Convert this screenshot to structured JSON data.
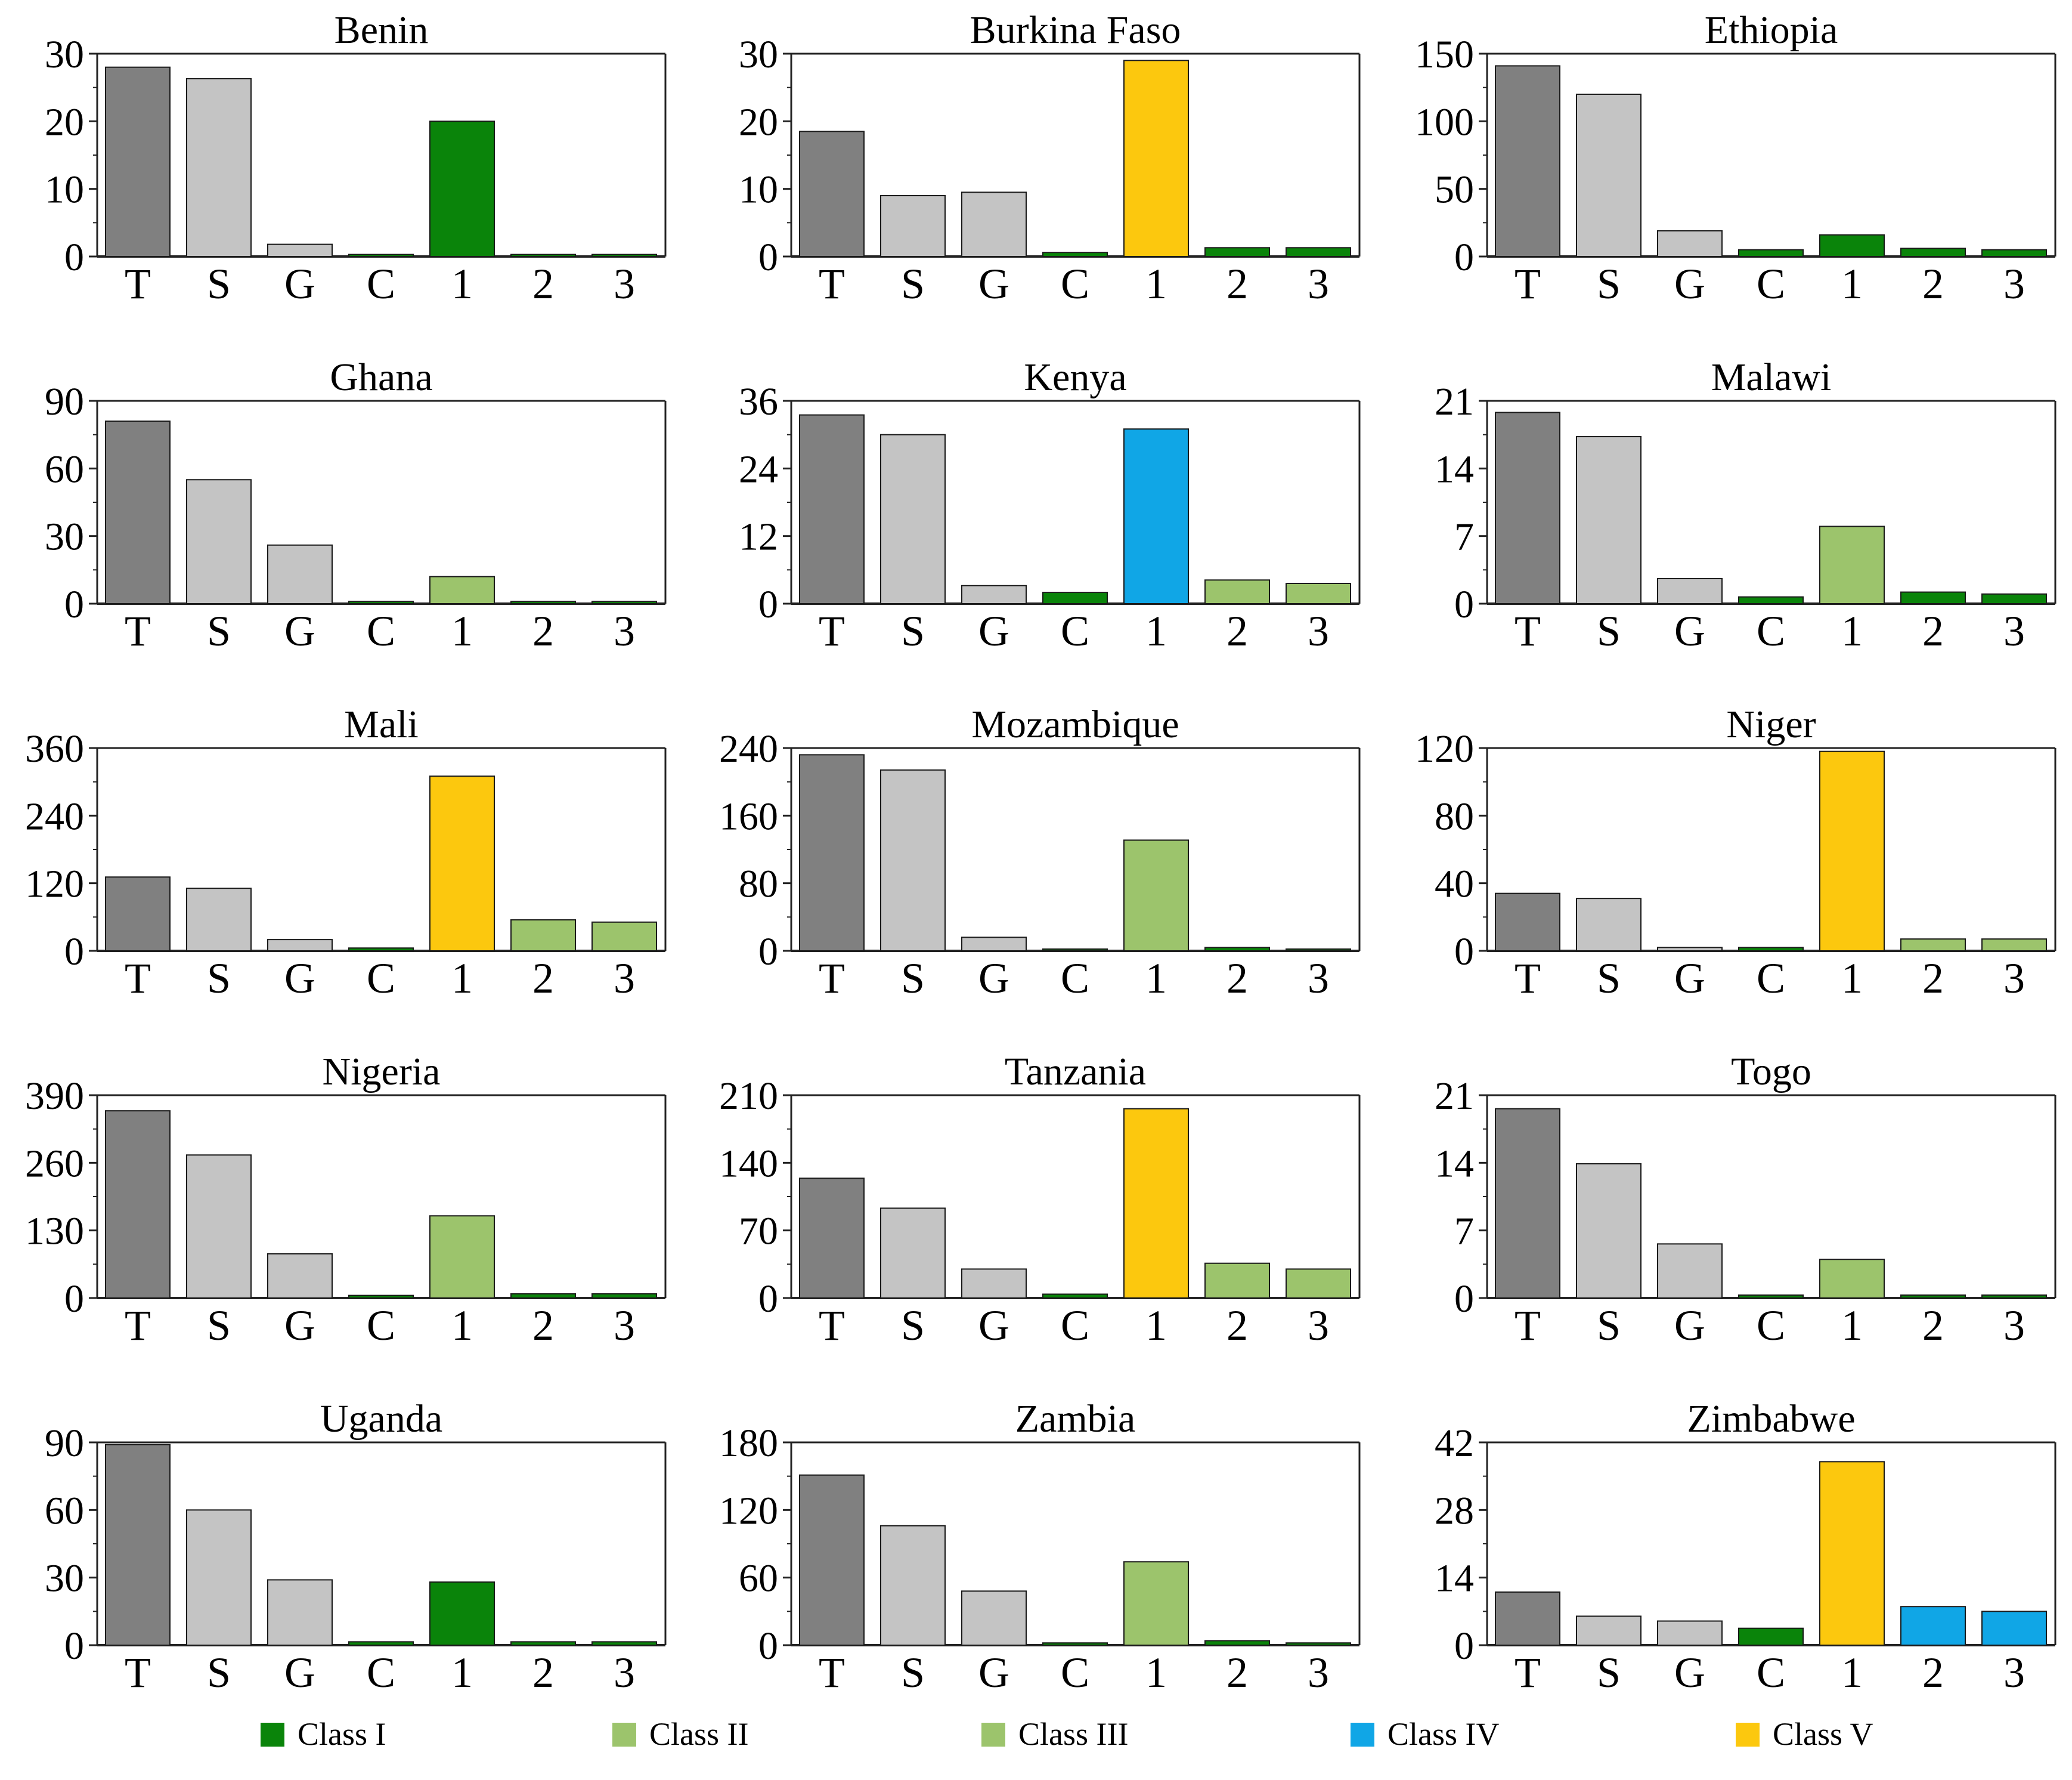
{
  "colors": {
    "total": "#808080",
    "subgroup": "#c4c4c4",
    "class_I": "#0a840a",
    "class_II": "#9cc46c",
    "class_III": "#9cc46c",
    "class_IV": "#10a6e6",
    "class_V": "#fcc80e"
  },
  "legend": [
    {
      "label": "Class I",
      "color_key": "class_I"
    },
    {
      "label": "Class II",
      "color_key": "class_II"
    },
    {
      "label": "Class III",
      "color_key": "class_III"
    },
    {
      "label": "Class IV",
      "color_key": "class_IV"
    },
    {
      "label": "Class V",
      "color_key": "class_V"
    }
  ],
  "chart_data": [
    {
      "type": "bar",
      "title": "Benin",
      "categories": [
        "T",
        "S",
        "G",
        "C",
        "1",
        "2",
        "3"
      ],
      "values": [
        28,
        26.3,
        1.8,
        0.3,
        20,
        0.3,
        0.3
      ],
      "colors": [
        "total",
        "subgroup",
        "subgroup",
        "class_I",
        "class_I",
        "class_I",
        "class_I"
      ],
      "yticks": [
        0,
        10,
        20,
        30
      ],
      "ylim": [
        0,
        30
      ]
    },
    {
      "type": "bar",
      "title": "Burkina Faso",
      "categories": [
        "T",
        "S",
        "G",
        "C",
        "1",
        "2",
        "3"
      ],
      "values": [
        18.5,
        9,
        9.5,
        0.6,
        29,
        1.3,
        1.3
      ],
      "colors": [
        "total",
        "subgroup",
        "subgroup",
        "class_I",
        "class_V",
        "class_I",
        "class_I"
      ],
      "yticks": [
        0,
        10,
        20,
        30
      ],
      "ylim": [
        0,
        30
      ]
    },
    {
      "type": "bar",
      "title": "Ethiopia",
      "categories": [
        "T",
        "S",
        "G",
        "C",
        "1",
        "2",
        "3"
      ],
      "values": [
        141,
        120,
        19,
        5,
        16,
        6,
        5
      ],
      "colors": [
        "total",
        "subgroup",
        "subgroup",
        "class_I",
        "class_I",
        "class_I",
        "class_I"
      ],
      "yticks": [
        0,
        50,
        100,
        150
      ],
      "ylim": [
        0,
        150
      ]
    },
    {
      "type": "bar",
      "title": "Ghana",
      "categories": [
        "T",
        "S",
        "G",
        "C",
        "1",
        "2",
        "3"
      ],
      "values": [
        81,
        55,
        26,
        1,
        12,
        1,
        1
      ],
      "colors": [
        "total",
        "subgroup",
        "subgroup",
        "class_I",
        "class_II",
        "class_I",
        "class_I"
      ],
      "yticks": [
        0,
        30,
        60,
        90
      ],
      "ylim": [
        0,
        90
      ]
    },
    {
      "type": "bar",
      "title": "Kenya",
      "categories": [
        "T",
        "S",
        "G",
        "C",
        "1",
        "2",
        "3"
      ],
      "values": [
        33.5,
        30,
        3.2,
        2,
        31,
        4.2,
        3.6
      ],
      "colors": [
        "total",
        "subgroup",
        "subgroup",
        "class_I",
        "class_IV",
        "class_II",
        "class_II"
      ],
      "yticks": [
        0,
        12,
        24,
        36
      ],
      "ylim": [
        0,
        36
      ]
    },
    {
      "type": "bar",
      "title": "Malawi",
      "categories": [
        "T",
        "S",
        "G",
        "C",
        "1",
        "2",
        "3"
      ],
      "values": [
        19.8,
        17.3,
        2.6,
        0.7,
        8,
        1.2,
        1
      ],
      "colors": [
        "total",
        "subgroup",
        "subgroup",
        "class_I",
        "class_II",
        "class_I",
        "class_I"
      ],
      "yticks": [
        0,
        7,
        14,
        21
      ],
      "ylim": [
        0,
        21
      ]
    },
    {
      "type": "bar",
      "title": "Mali",
      "categories": [
        "T",
        "S",
        "G",
        "C",
        "1",
        "2",
        "3"
      ],
      "values": [
        131,
        111,
        20,
        5,
        310,
        55,
        51
      ],
      "colors": [
        "total",
        "subgroup",
        "subgroup",
        "class_I",
        "class_V",
        "class_II",
        "class_II"
      ],
      "yticks": [
        0,
        120,
        240,
        360
      ],
      "ylim": [
        0,
        360
      ]
    },
    {
      "type": "bar",
      "title": "Mozambique",
      "categories": [
        "T",
        "S",
        "G",
        "C",
        "1",
        "2",
        "3"
      ],
      "values": [
        232,
        214,
        16,
        2,
        131,
        4,
        2
      ],
      "colors": [
        "total",
        "subgroup",
        "subgroup",
        "class_I",
        "class_II",
        "class_I",
        "class_I"
      ],
      "yticks": [
        0,
        80,
        160,
        240
      ],
      "ylim": [
        0,
        240
      ]
    },
    {
      "type": "bar",
      "title": "Niger",
      "categories": [
        "T",
        "S",
        "G",
        "C",
        "1",
        "2",
        "3"
      ],
      "values": [
        34,
        31,
        2,
        2,
        118,
        7,
        7
      ],
      "colors": [
        "total",
        "subgroup",
        "subgroup",
        "class_I",
        "class_V",
        "class_II",
        "class_II"
      ],
      "yticks": [
        0,
        40,
        80,
        120
      ],
      "ylim": [
        0,
        120
      ]
    },
    {
      "type": "bar",
      "title": "Nigeria",
      "categories": [
        "T",
        "S",
        "G",
        "C",
        "1",
        "2",
        "3"
      ],
      "values": [
        360,
        275,
        85,
        5,
        158,
        8,
        8
      ],
      "colors": [
        "total",
        "subgroup",
        "subgroup",
        "class_I",
        "class_II",
        "class_I",
        "class_I"
      ],
      "yticks": [
        0,
        130,
        260,
        390
      ],
      "ylim": [
        0,
        390
      ]
    },
    {
      "type": "bar",
      "title": "Tanzania",
      "categories": [
        "T",
        "S",
        "G",
        "C",
        "1",
        "2",
        "3"
      ],
      "values": [
        124,
        93,
        30,
        4,
        196,
        36,
        30
      ],
      "colors": [
        "total",
        "subgroup",
        "subgroup",
        "class_I",
        "class_V",
        "class_II",
        "class_II"
      ],
      "yticks": [
        0,
        70,
        140,
        210
      ],
      "ylim": [
        0,
        210
      ]
    },
    {
      "type": "bar",
      "title": "Togo",
      "categories": [
        "T",
        "S",
        "G",
        "C",
        "1",
        "2",
        "3"
      ],
      "values": [
        19.6,
        13.9,
        5.6,
        0.3,
        4,
        0.3,
        0.3
      ],
      "colors": [
        "total",
        "subgroup",
        "subgroup",
        "class_I",
        "class_II",
        "class_I",
        "class_I"
      ],
      "yticks": [
        0,
        7,
        14,
        21
      ],
      "ylim": [
        0,
        21
      ]
    },
    {
      "type": "bar",
      "title": "Uganda",
      "categories": [
        "T",
        "S",
        "G",
        "C",
        "1",
        "2",
        "3"
      ],
      "values": [
        89,
        60,
        29,
        1.5,
        28,
        1.5,
        1.5
      ],
      "colors": [
        "total",
        "subgroup",
        "subgroup",
        "class_I",
        "class_I",
        "class_I",
        "class_I"
      ],
      "yticks": [
        0,
        30,
        60,
        90
      ],
      "ylim": [
        0,
        90
      ]
    },
    {
      "type": "bar",
      "title": "Zambia",
      "categories": [
        "T",
        "S",
        "G",
        "C",
        "1",
        "2",
        "3"
      ],
      "values": [
        151,
        106,
        48,
        2,
        74,
        4,
        2
      ],
      "colors": [
        "total",
        "subgroup",
        "subgroup",
        "class_I",
        "class_II",
        "class_I",
        "class_I"
      ],
      "yticks": [
        0,
        60,
        120,
        180
      ],
      "ylim": [
        0,
        180
      ]
    },
    {
      "type": "bar",
      "title": "Zimbabwe",
      "categories": [
        "T",
        "S",
        "G",
        "C",
        "1",
        "2",
        "3"
      ],
      "values": [
        11,
        6,
        5,
        3.5,
        38,
        8,
        7
      ],
      "colors": [
        "total",
        "subgroup",
        "subgroup",
        "class_I",
        "class_V",
        "class_IV",
        "class_IV"
      ],
      "yticks": [
        0,
        14,
        28,
        42
      ],
      "ylim": [
        0,
        42
      ]
    }
  ]
}
